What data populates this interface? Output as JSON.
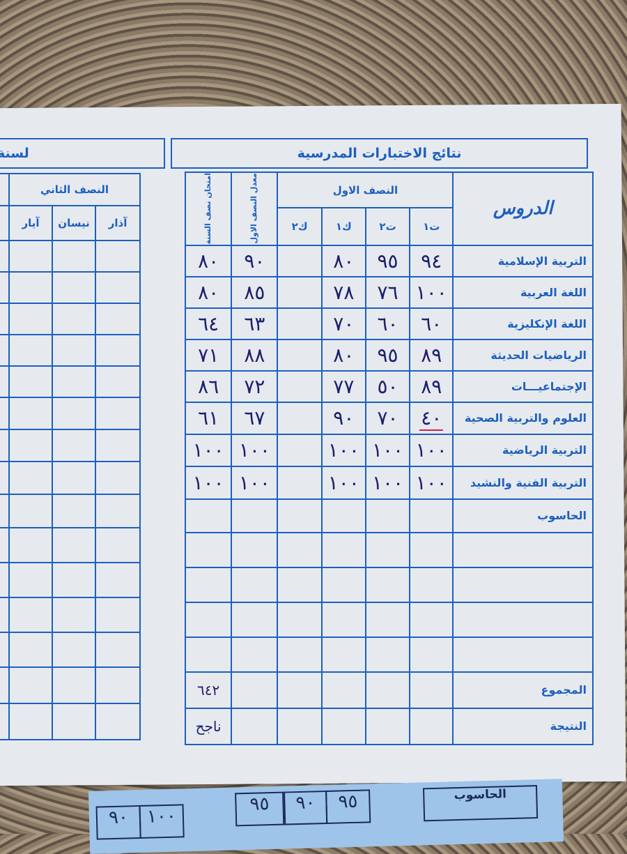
{
  "header": {
    "title": "نتائج الاختبارات المدرسية",
    "left_title_fragment": "لسنة"
  },
  "columns": {
    "subjects": "الدروس",
    "first_half": "النصف الاول",
    "t1": "ت١",
    "t2": "ت٢",
    "k1": "ك١",
    "k2": "ك٢",
    "first_half_avg": "معدل النصف الاول",
    "midyear_exam": "امتحان نصف السنة"
  },
  "second_half": {
    "title": "النصف الثاني",
    "months": [
      "آذار",
      "نيسان",
      "آيار"
    ]
  },
  "rows": [
    {
      "subject": "التربية الإسلامية",
      "t1": "٩٤",
      "t2": "٩٥",
      "k1": "٨٠",
      "k2": "",
      "avg": "٩٠",
      "exam": "٨٠"
    },
    {
      "subject": "اللغة العربية",
      "t1": "١٠٠",
      "t2": "٧٦",
      "k1": "٧٨",
      "k2": "",
      "avg": "٨٥",
      "exam": "٨٠"
    },
    {
      "subject": "اللغة الإنكليزية",
      "t1": "٦٠",
      "t2": "٦٠",
      "k1": "٧٠",
      "k2": "",
      "avg": "٦٣",
      "exam": "٦٤"
    },
    {
      "subject": "الرياضيات الحديثة",
      "t1": "٨٩",
      "t2": "٩٥",
      "k1": "٨٠",
      "k2": "",
      "avg": "٨٨",
      "exam": "٧١"
    },
    {
      "subject": "الإجتماعيـــات",
      "t1": "٨٩",
      "t2": "٥٠",
      "k1": "٧٧",
      "k2": "",
      "avg": "٧٢",
      "exam": "٨٦"
    },
    {
      "subject": "العلوم والتربية الصحية",
      "t1": "٤٠",
      "t2": "٧٠",
      "k1": "٩٠",
      "k2": "",
      "avg": "٦٧",
      "exam": "٦١"
    },
    {
      "subject": "التربية الرياضية",
      "t1": "١٠٠",
      "t2": "١٠٠",
      "k1": "١٠٠",
      "k2": "",
      "avg": "١٠٠",
      "exam": "١٠٠"
    },
    {
      "subject": "التربية الفنية والنشيد",
      "t1": "١٠٠",
      "t2": "١٠٠",
      "k1": "١٠٠",
      "k2": "",
      "avg": "١٠٠",
      "exam": "١٠٠"
    },
    {
      "subject": "الحاسوب",
      "t1": "",
      "t2": "",
      "k1": "",
      "k2": "",
      "avg": "",
      "exam": ""
    }
  ],
  "total": {
    "label": "المجموع",
    "exam": "٦٤٢"
  },
  "result": {
    "label": "النتيجة",
    "exam": "ناجح"
  },
  "colors": {
    "ink_print": "#1d5fc0",
    "ink_hand": "#1a1f6e",
    "highlight": "#d02050",
    "paper": "#e6eaee"
  },
  "underlying_card": {
    "subject": "الحاسوب",
    "values": [
      "٩٥",
      "٩٠",
      "٩٥",
      "٩٠",
      "١٠٠"
    ]
  }
}
